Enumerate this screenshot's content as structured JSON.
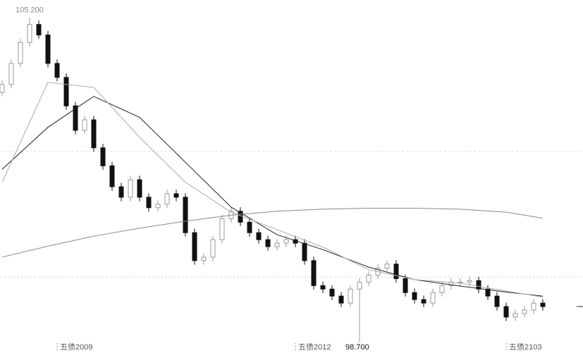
{
  "chart_data": {
    "type": "candlestick",
    "categories": [
      null,
      null,
      null,
      null,
      null,
      null,
      "五债2009",
      null,
      null,
      null,
      null,
      null,
      null,
      null,
      null,
      null,
      null,
      null,
      null,
      null,
      null,
      null,
      null,
      null,
      null,
      null,
      null,
      null,
      null,
      null,
      null,
      null,
      "五债2012",
      null,
      null,
      null,
      null,
      null,
      null,
      null,
      null,
      null,
      null,
      null,
      null,
      null,
      null,
      null,
      null,
      null,
      null,
      null,
      null,
      null,
      null,
      "五债2103",
      null,
      null,
      null,
      null
    ],
    "open": [
      103.7,
      103.86,
      104.28,
      104.7,
      105.06,
      104.85,
      104.28,
      104.0,
      103.43,
      102.94,
      103.15,
      102.59,
      102.23,
      101.81,
      101.6,
      101.95,
      101.6,
      101.39,
      101.46,
      101.67,
      101.6,
      100.89,
      100.33,
      100.4,
      100.75,
      101.17,
      101.32,
      101.1,
      100.89,
      100.75,
      100.61,
      100.68,
      100.75,
      100.68,
      100.33,
      99.83,
      99.76,
      99.62,
      99.48,
      99.76,
      99.9,
      100.04,
      100.18,
      100.26,
      99.97,
      99.69,
      99.55,
      99.48,
      99.69,
      99.83,
      99.9,
      99.9,
      99.93,
      99.76,
      99.62,
      99.41,
      99.2,
      99.27,
      99.34,
      99.48
    ],
    "high": [
      103.94,
      104.36,
      104.78,
      105.2,
      105.14,
      104.93,
      104.36,
      104.08,
      103.51,
      103.23,
      103.23,
      102.67,
      102.31,
      101.89,
      102.03,
      102.03,
      101.68,
      101.54,
      101.75,
      101.75,
      101.68,
      100.97,
      100.48,
      100.83,
      101.25,
      101.4,
      101.4,
      101.18,
      100.97,
      100.83,
      100.76,
      100.83,
      100.83,
      100.76,
      100.41,
      99.91,
      99.84,
      99.7,
      99.84,
      99.98,
      100.12,
      100.26,
      100.34,
      100.34,
      100.05,
      99.77,
      99.63,
      99.77,
      99.91,
      99.98,
      99.98,
      100.01,
      100.01,
      99.84,
      99.7,
      99.49,
      99.35,
      99.42,
      99.56,
      99.56
    ],
    "low": [
      103.62,
      103.78,
      104.2,
      104.62,
      104.77,
      104.2,
      103.92,
      103.35,
      102.86,
      102.86,
      102.51,
      102.15,
      101.73,
      101.52,
      101.52,
      101.52,
      101.31,
      101.31,
      101.38,
      101.52,
      100.81,
      100.25,
      100.25,
      100.32,
      100.67,
      101.09,
      101.02,
      100.81,
      100.67,
      100.53,
      100.53,
      100.6,
      100.6,
      100.25,
      99.75,
      99.68,
      99.54,
      99.4,
      99.4,
      98.7,
      99.82,
      99.96,
      100.1,
      99.89,
      99.61,
      99.47,
      99.4,
      99.4,
      99.61,
      99.75,
      99.82,
      99.82,
      99.68,
      99.54,
      99.33,
      99.12,
      99.12,
      99.19,
      99.26,
      99.33
    ],
    "close": [
      103.86,
      104.28,
      104.7,
      105.06,
      104.85,
      104.28,
      104.0,
      103.43,
      102.94,
      103.15,
      102.59,
      102.23,
      101.81,
      101.6,
      101.95,
      101.6,
      101.39,
      101.46,
      101.67,
      101.6,
      100.89,
      100.33,
      100.4,
      100.75,
      101.17,
      101.32,
      101.1,
      100.89,
      100.75,
      100.61,
      100.68,
      100.75,
      100.68,
      100.33,
      99.83,
      99.76,
      99.62,
      99.48,
      99.76,
      99.9,
      100.04,
      100.18,
      100.26,
      99.97,
      99.69,
      99.55,
      99.48,
      99.69,
      99.83,
      99.9,
      99.9,
      99.93,
      99.76,
      99.62,
      99.41,
      99.2,
      99.27,
      99.34,
      99.48,
      99.41
    ],
    "lines": [
      {
        "color": "#888888",
        "x": [
          0,
          5,
          10,
          15,
          20,
          25,
          30,
          35,
          40,
          45,
          50,
          55,
          59
        ],
        "values": [
          100.4,
          100.62,
          100.82,
          100.98,
          101.12,
          101.24,
          101.32,
          101.36,
          101.38,
          101.38,
          101.36,
          101.3,
          101.18
        ]
      },
      {
        "color": "#222222",
        "x": [
          0,
          5,
          10,
          15,
          20,
          25,
          30,
          35,
          40,
          45,
          50,
          55,
          59
        ],
        "values": [
          102.16,
          103.0,
          103.62,
          103.2,
          102.3,
          101.4,
          100.85,
          100.55,
          100.2,
          99.95,
          99.82,
          99.7,
          99.62
        ]
      },
      {
        "color": "#aaaaaa",
        "x": [
          0,
          5,
          10,
          15,
          20,
          25,
          30,
          35,
          40,
          45,
          50,
          55,
          59
        ],
        "values": [
          101.9,
          103.9,
          103.8,
          102.8,
          101.9,
          101.3,
          100.95,
          100.6,
          100.15,
          99.95,
          99.88,
          99.72,
          99.6
        ]
      }
    ],
    "annotations": [
      {
        "text": "105.200",
        "value": 105.2
      },
      {
        "text": "98.700",
        "value": 98.7
      }
    ],
    "hlines": [
      102.52,
      100.0
    ],
    "ylim": [
      98.48,
      105.55
    ]
  }
}
